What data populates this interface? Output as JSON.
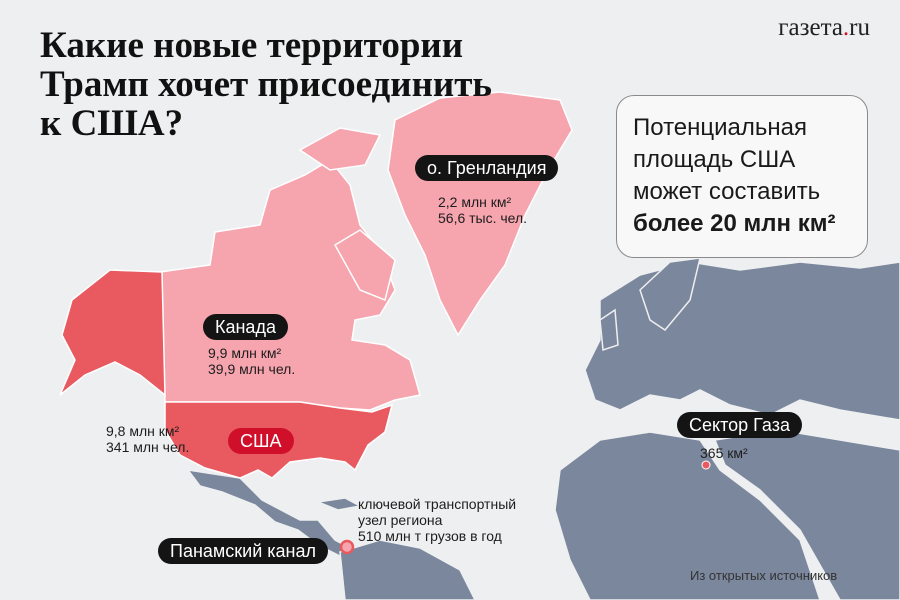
{
  "title": [
    "Какие новые территории",
    "Трамп хочет присоединить",
    "к США?"
  ],
  "logo": {
    "main": "газета",
    "dot": ".",
    "tld": "ru"
  },
  "summary": {
    "line1": "Потенциальная",
    "line2": "площадь США",
    "line3": "может составить",
    "highlight": "более 20 млн км²"
  },
  "regions": {
    "greenland": {
      "label": "о. Гренландия",
      "area": "2,2 млн км²",
      "population": "56,6 тыс. чел."
    },
    "canada": {
      "label": "Канада",
      "area": "9,9 млн км²",
      "population": "39,9 млн чел."
    },
    "usa": {
      "label": "США",
      "area": "9,8 млн км²",
      "population": "341 млн чел."
    },
    "panama": {
      "label": "Панамский канал",
      "note1": "ключевой транспортный",
      "note2": "узел региона",
      "note3": "510 млн т грузов в год"
    },
    "gaza": {
      "label": "Сектор Газа",
      "area": "365 км²"
    }
  },
  "source": "Из открытых источников",
  "colors": {
    "background": "#eeeff1",
    "claimed": "#f6a4ae",
    "usa": "#e85a5f",
    "other_land": "#7b879c",
    "label_dark": "#141414",
    "label_red": "#d0102a"
  }
}
